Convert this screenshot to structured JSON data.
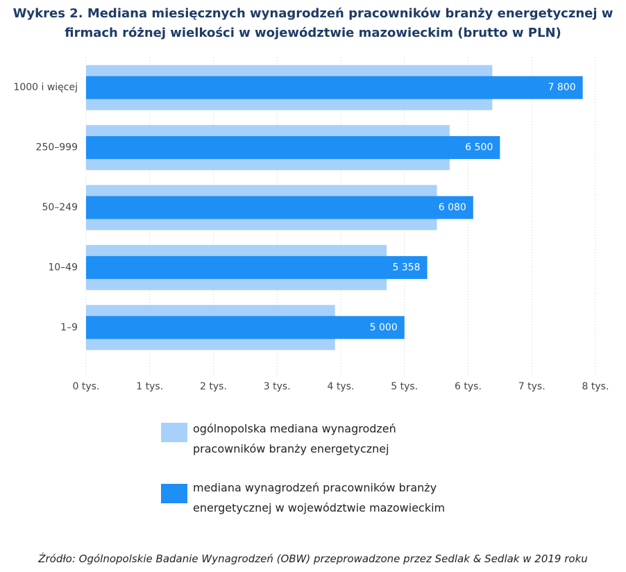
{
  "chart_data": {
    "type": "bar",
    "orientation": "horizontal",
    "title": "Wykres 2. Mediana miesięcznych wynagrodzeń pracowników branży energetycznej w firmach różnej wielkości w województwie mazowieckim (brutto w PLN)",
    "categories": [
      "1000 i więcej",
      "250–999",
      "50–249",
      "10–49",
      "1–9"
    ],
    "series": [
      {
        "name": "ogólnopolska mediana wynagrodzeń pracowników branży energetycznej",
        "color": "#a7d1fb",
        "values": [
          6380,
          5710,
          5510,
          4720,
          3910
        ]
      },
      {
        "name": "mediana wynagrodzeń pracowników branży energetycznej w województwie mazowieckim",
        "color": "#1e8ff5",
        "values": [
          7800,
          6500,
          6080,
          5358,
          5000
        ],
        "value_labels": [
          "7 800",
          "6 500",
          "6 080",
          "5 358",
          "5 000"
        ]
      }
    ],
    "xlim": [
      0,
      8000
    ],
    "xticks": [
      {
        "value": 0,
        "label": "0 tys."
      },
      {
        "value": 1000,
        "label": "1 tys."
      },
      {
        "value": 2000,
        "label": "2 tys."
      },
      {
        "value": 3000,
        "label": "3 tys."
      },
      {
        "value": 4000,
        "label": "4 tys."
      },
      {
        "value": 5000,
        "label": "5 tys."
      },
      {
        "value": 6000,
        "label": "6 tys."
      },
      {
        "value": 7000,
        "label": "7 tys."
      },
      {
        "value": 8000,
        "label": "8 tys."
      }
    ],
    "grid": true,
    "source": "Źródło: Ogólnopolskie Badanie Wynagrodzeń (OBW) przeprowadzone przez Sedlak & Sedlak w 2019 roku"
  }
}
